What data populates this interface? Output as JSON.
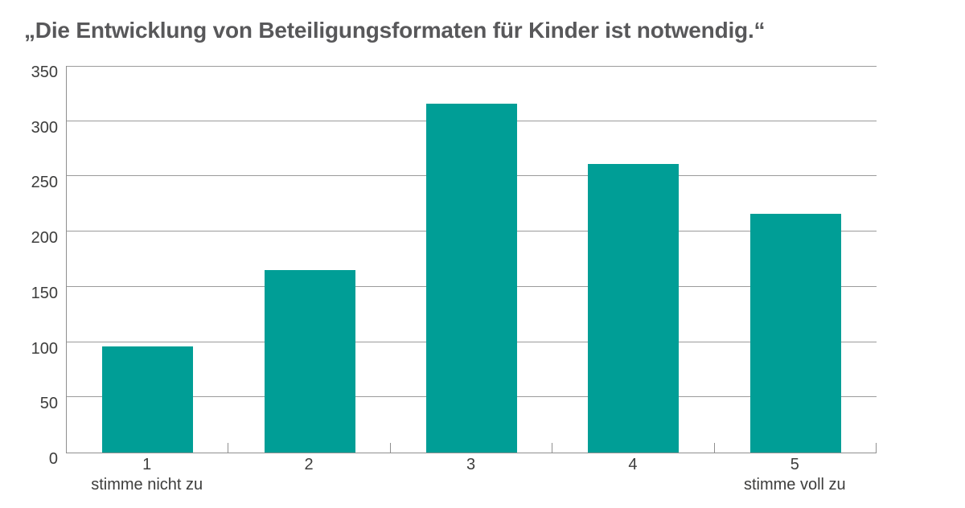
{
  "title": "„Die Entwicklung von Beteiligungsformaten für Kinder ist notwendig.“",
  "chart_data": {
    "type": "bar",
    "title": "„Die Entwicklung von Beteiligungsformaten für Kinder ist notwendig.“",
    "categories": [
      "1",
      "2",
      "3",
      "4",
      "5"
    ],
    "category_sublabels": [
      "stimme nicht zu",
      "",
      "",
      "",
      "stimme voll zu"
    ],
    "values": [
      96,
      165,
      316,
      261,
      216
    ],
    "xlabel": "",
    "ylabel": "",
    "ylim": [
      0,
      350
    ],
    "yticks": [
      0,
      50,
      100,
      150,
      200,
      250,
      300,
      350
    ],
    "grid": true,
    "legend": false,
    "colors": {
      "bar": "#009e96",
      "gridline": "#9b9b9b",
      "axis": "#8f8f8f",
      "tick_text": "#3d3d3c",
      "title_text": "#58585a"
    }
  }
}
